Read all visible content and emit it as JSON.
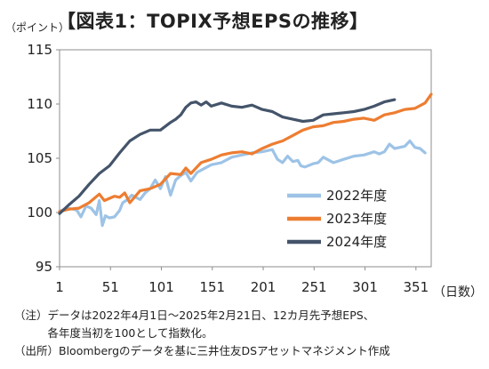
{
  "title": "【図表1：TOPIX予想EPSの推移】",
  "y_unit_label": "（ポイント）",
  "x_unit_label": "（日数）",
  "notes": [
    "（注）データは2022年4月1日～2025年2月21日、12カ月先予想EPS、",
    "　　　各年度当初を100として指数化。",
    "（出所）Bloombergのデータを基に三井住友DSアセットマネジメント作成"
  ],
  "chart_data": {
    "type": "line",
    "title": "【図表1：TOPIX予想EPSの推移】",
    "xlabel": "（日数）",
    "ylabel": "（ポイント）",
    "xlim": [
      1,
      366
    ],
    "ylim": [
      95,
      115
    ],
    "x_ticks": [
      1,
      51,
      101,
      151,
      201,
      251,
      301,
      351
    ],
    "y_ticks": [
      95,
      100,
      105,
      110,
      115
    ],
    "grid": false,
    "legend_position": "bottom-right",
    "series": [
      {
        "name": "2022年度",
        "color": "#9dc3e6",
        "x": [
          1,
          8,
          15,
          18,
          22,
          27,
          32,
          37,
          40,
          43,
          46,
          50,
          55,
          60,
          63,
          68,
          72,
          76,
          80,
          85,
          90,
          95,
          100,
          105,
          110,
          115,
          120,
          125,
          130,
          136,
          142,
          150,
          160,
          170,
          180,
          190,
          200,
          210,
          215,
          220,
          225,
          230,
          235,
          238,
          242,
          250,
          255,
          260,
          270,
          280,
          290,
          300,
          310,
          315,
          320,
          325,
          330,
          340,
          345,
          350,
          355,
          360
        ],
        "y": [
          100.1,
          100.4,
          100.3,
          100.2,
          99.6,
          100.6,
          100.4,
          99.8,
          101.1,
          98.8,
          99.7,
          99.5,
          99.6,
          100.2,
          100.9,
          101.2,
          101.6,
          101.4,
          101.2,
          101.8,
          102.2,
          103.0,
          102.2,
          103.3,
          101.6,
          103.0,
          103.4,
          103.7,
          102.9,
          103.7,
          104.0,
          104.4,
          104.6,
          105.1,
          105.3,
          105.5,
          105.6,
          105.8,
          104.9,
          104.6,
          105.2,
          104.7,
          104.8,
          104.3,
          104.2,
          104.5,
          104.6,
          105.1,
          104.6,
          104.9,
          105.2,
          105.3,
          105.6,
          105.4,
          105.6,
          106.3,
          105.9,
          106.1,
          106.6,
          106.0,
          105.9,
          105.5
        ]
      },
      {
        "name": "2023年度",
        "color": "#ed7d31",
        "x": [
          1,
          10,
          20,
          30,
          40,
          45,
          50,
          55,
          60,
          65,
          70,
          80,
          90,
          100,
          110,
          120,
          125,
          130,
          140,
          150,
          160,
          170,
          180,
          190,
          200,
          210,
          220,
          230,
          240,
          250,
          260,
          270,
          280,
          290,
          300,
          310,
          320,
          330,
          340,
          350,
          360,
          366
        ],
        "y": [
          100.1,
          100.3,
          100.4,
          100.9,
          101.7,
          101.1,
          101.3,
          101.5,
          101.4,
          101.8,
          100.9,
          102.0,
          102.2,
          102.6,
          103.6,
          103.5,
          104.1,
          103.6,
          104.6,
          104.9,
          105.3,
          105.5,
          105.6,
          105.4,
          105.9,
          106.3,
          106.6,
          107.1,
          107.6,
          107.9,
          108.0,
          108.3,
          108.4,
          108.6,
          108.7,
          108.5,
          109.0,
          109.2,
          109.5,
          109.6,
          110.1,
          110.9
        ]
      },
      {
        "name": "2024年度",
        "color": "#44546a",
        "x": [
          1,
          10,
          20,
          30,
          40,
          50,
          60,
          70,
          80,
          90,
          100,
          110,
          115,
          120,
          125,
          130,
          135,
          140,
          145,
          150,
          160,
          170,
          180,
          190,
          200,
          210,
          220,
          230,
          240,
          250,
          260,
          270,
          280,
          290,
          300,
          310,
          320,
          330
        ],
        "y": [
          99.9,
          100.7,
          101.5,
          102.6,
          103.6,
          104.3,
          105.5,
          106.6,
          107.2,
          107.6,
          107.6,
          108.3,
          108.6,
          109.0,
          109.7,
          110.1,
          110.2,
          109.9,
          110.2,
          109.8,
          110.1,
          109.8,
          109.7,
          109.9,
          109.5,
          109.3,
          108.8,
          108.6,
          108.4,
          108.5,
          109.0,
          109.1,
          109.2,
          109.3,
          109.5,
          109.8,
          110.2,
          110.4
        ]
      }
    ]
  }
}
